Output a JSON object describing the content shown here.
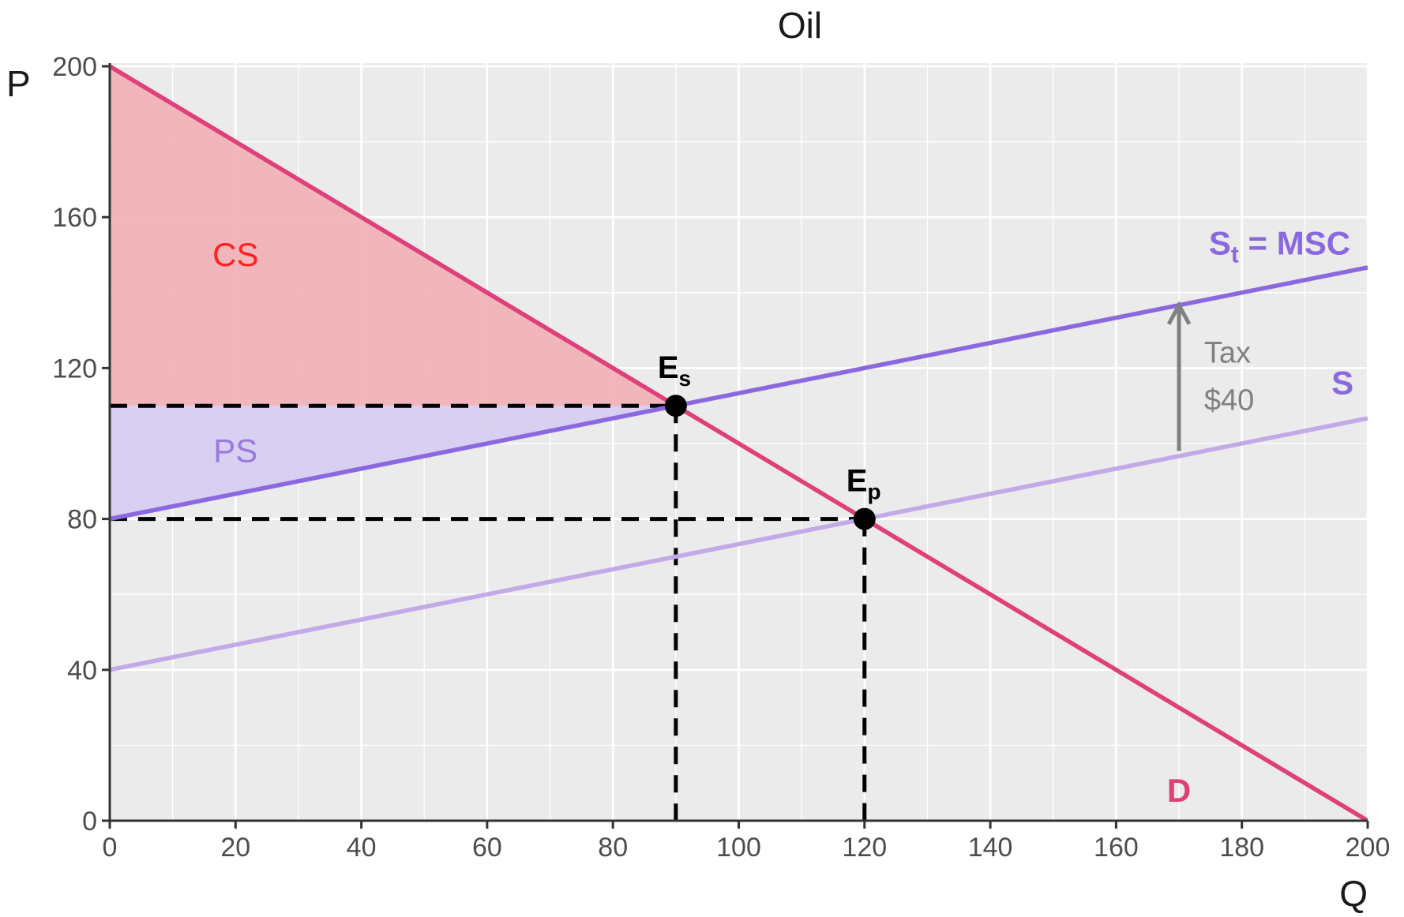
{
  "chart_data": {
    "type": "line",
    "title": "Oil",
    "xlabel": "Q",
    "ylabel": "P",
    "xlim": [
      0,
      200
    ],
    "ylim": [
      0,
      200
    ],
    "x_ticks": [
      0,
      20,
      40,
      60,
      80,
      100,
      120,
      140,
      160,
      180,
      200
    ],
    "y_ticks": [
      0,
      40,
      80,
      120,
      160,
      200
    ],
    "grid": true,
    "legend": "none",
    "colors": {
      "demand": "#e0407a",
      "supply_tax": "#8a68de",
      "supply": "#c0aae8",
      "cs_fill": "#f0b3b8",
      "ps_fill": "#d8cdf0",
      "cs_text": "#ff2020",
      "ps_text": "#9a7ae0",
      "tax_arrow": "#808080",
      "panel": "#ebebeb",
      "grid": "#ffffff"
    },
    "series": [
      {
        "key": "demand",
        "x": [
          0,
          200
        ],
        "y": [
          200,
          0
        ]
      },
      {
        "key": "supply_tax",
        "x": [
          0,
          200
        ],
        "y": [
          80,
          146.67
        ]
      },
      {
        "key": "supply",
        "x": [
          0,
          200
        ],
        "y": [
          40,
          106.67
        ]
      }
    ],
    "areas": [
      {
        "key": "cs",
        "label": "CS",
        "points": [
          [
            0,
            200
          ],
          [
            90,
            110
          ],
          [
            0,
            110
          ]
        ],
        "label_at": [
          20,
          150
        ]
      },
      {
        "key": "ps",
        "label": "PS",
        "points": [
          [
            0,
            110
          ],
          [
            90,
            110
          ],
          [
            0,
            80
          ]
        ],
        "label_at": [
          20,
          98
        ]
      }
    ],
    "curve_labels": {
      "supply_tax": {
        "main": "S",
        "sub": "t",
        "rest": " = MSC",
        "at": [
          186,
          153
        ]
      },
      "supply": {
        "text": "S",
        "at": [
          196,
          116
        ]
      },
      "demand": {
        "text": "D",
        "at": [
          170,
          8
        ]
      }
    },
    "points": [
      {
        "key": "es",
        "main": "E",
        "sub": "s",
        "x": 90,
        "y": 110
      },
      {
        "key": "ep",
        "main": "E",
        "sub": "p",
        "x": 120,
        "y": 80
      }
    ],
    "dashed_guides": [
      {
        "from": [
          0,
          110
        ],
        "to": [
          90,
          110
        ]
      },
      {
        "from": [
          0,
          80
        ],
        "to": [
          120,
          80
        ]
      },
      {
        "from": [
          90,
          110
        ],
        "to": [
          90,
          0
        ]
      },
      {
        "from": [
          120,
          80
        ],
        "to": [
          120,
          0
        ]
      }
    ],
    "tax_arrow": {
      "x": 170,
      "from_y": 98,
      "to_y": 136.67,
      "label_line1": "Tax",
      "label_line2": "$40",
      "label_at": [
        174,
        124
      ]
    }
  }
}
